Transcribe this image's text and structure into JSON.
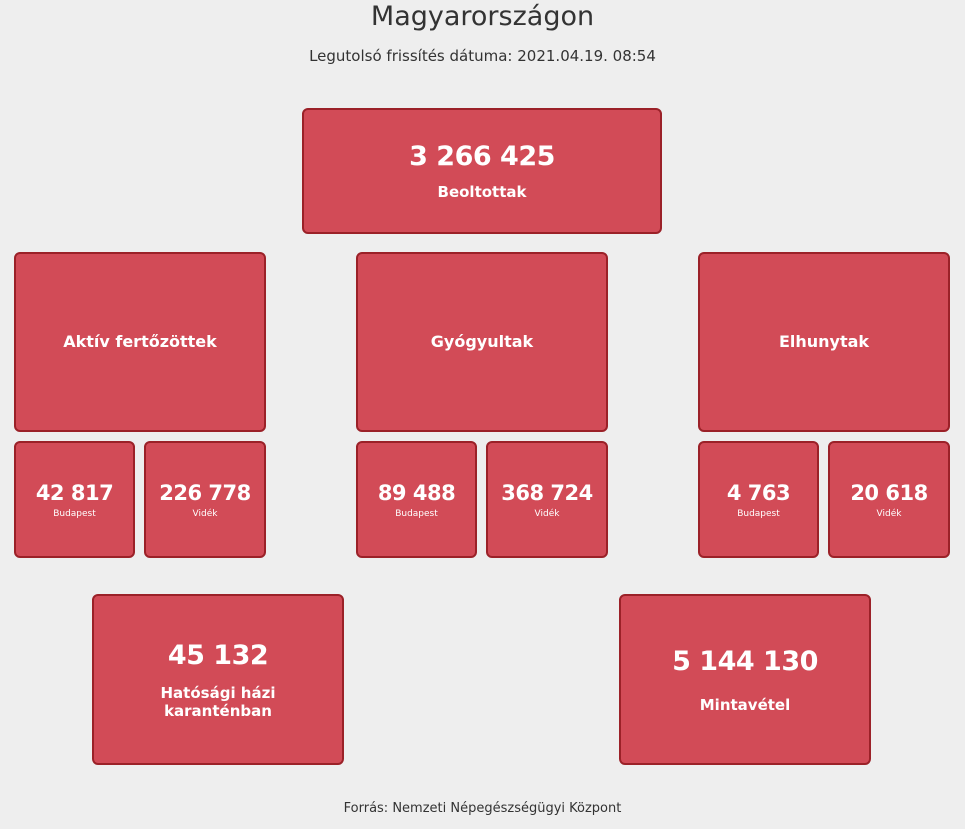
{
  "header": {
    "title": "Magyarországon",
    "updated": "Legutolsó frissítés dátuma: 2021.04.19. 08:54"
  },
  "vaccinated": {
    "value": "3 266 425",
    "label": "Beoltottak"
  },
  "categories": [
    {
      "label": "Aktív fertőzöttek",
      "budapest": {
        "value": "42 817",
        "label": "Budapest"
      },
      "videk": {
        "value": "226 778",
        "label": "Vidék"
      }
    },
    {
      "label": "Gyógyultak",
      "budapest": {
        "value": "89 488",
        "label": "Budapest"
      },
      "videk": {
        "value": "368 724",
        "label": "Vidék"
      }
    },
    {
      "label": "Elhunytak",
      "budapest": {
        "value": "4 763",
        "label": "Budapest"
      },
      "videk": {
        "value": "20 618",
        "label": "Vidék"
      }
    }
  ],
  "quarantine": {
    "value": "45 132",
    "label_line1": "Hatósági házi",
    "label_line2": "karanténban"
  },
  "samples": {
    "value": "5 144 130",
    "label": "Mintavétel"
  },
  "footer": {
    "source": "Forrás: Nemzeti Népegészségügyi Központ"
  }
}
